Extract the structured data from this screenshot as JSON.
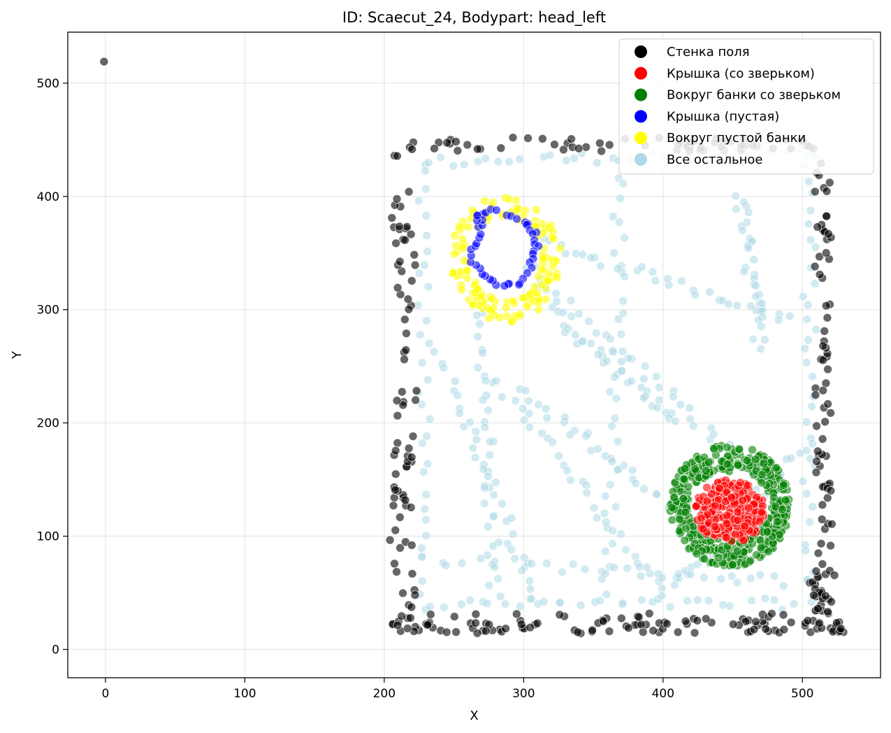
{
  "chart_data": {
    "type": "scatter",
    "title": "ID: Scaecut_24, Bodypart: head_left",
    "xlabel": "X",
    "ylabel": "Y",
    "xlim": [
      -27,
      556
    ],
    "ylim": [
      -25,
      545
    ],
    "xticks": [
      0,
      100,
      200,
      300,
      400,
      500
    ],
    "yticks": [
      0,
      100,
      200,
      300,
      400,
      500
    ],
    "grid": true,
    "legend_position": "top-right",
    "series": [
      {
        "name": "Стенка поля",
        "color": "#000000",
        "pattern": "perimeter",
        "points": [
          [
            -1,
            519
          ],
          [
            511,
            175
          ]
        ]
      },
      {
        "name": "Крышка (со зверьком)",
        "color": "#ff0000",
        "pattern": "disc",
        "center": [
          448,
          122
        ],
        "radius": [
          25,
          28
        ]
      },
      {
        "name": "Вокруг банки со зверьком",
        "color": "#008000",
        "pattern": "ring",
        "center": [
          448,
          127
        ],
        "inner_radius": [
          30,
          30
        ],
        "outer_radius": [
          43,
          54
        ]
      },
      {
        "name": "Крышка (пустая)",
        "color": "#0000ff",
        "pattern": "loop",
        "points": [
          [
            267,
            384
          ],
          [
            282,
            388
          ],
          [
            300,
            376
          ],
          [
            308,
            370
          ],
          [
            310,
            355
          ],
          [
            306,
            340
          ],
          [
            298,
            325
          ],
          [
            285,
            320
          ],
          [
            272,
            328
          ],
          [
            262,
            343
          ],
          [
            266,
            360
          ],
          [
            270,
            375
          ]
        ]
      },
      {
        "name": "Вокруг пустой банки",
        "color": "#ffff00",
        "pattern": "ring",
        "center": [
          287,
          345
        ],
        "inner_radius": [
          26,
          37
        ],
        "outer_radius": [
          40,
          56
        ]
      },
      {
        "name": "Все остальное",
        "color": "#add8e6",
        "pattern": "paths"
      }
    ]
  }
}
